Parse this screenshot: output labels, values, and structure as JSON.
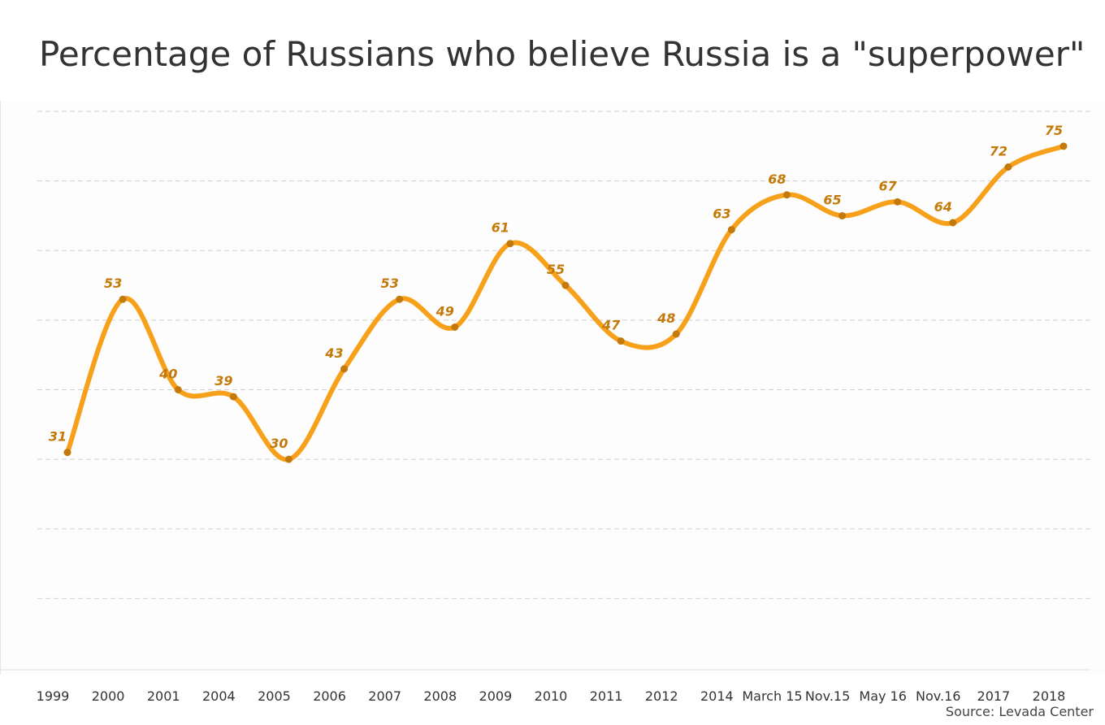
{
  "title": "Percentage of Russians who believe Russia is a \"superpower\"",
  "source": "Source: Levada Center",
  "colors": {
    "line": "#f7a11a",
    "point": "#c47a0a",
    "label": "#c47a0a",
    "grid": "#d0d0d0",
    "axis_text": "#333333"
  },
  "chart_data": {
    "type": "line",
    "categories": [
      "1999",
      "2000",
      "2001",
      "2004",
      "2005",
      "2006",
      "2007",
      "2008",
      "2009",
      "2010",
      "2011",
      "2012",
      "2014",
      "March 15",
      "Nov.15",
      "May 16",
      "Nov.16",
      "2017",
      "2018"
    ],
    "series": [
      {
        "values": [
          31,
          53,
          40,
          39,
          30,
          43,
          53,
          49,
          61,
          55,
          47,
          48,
          63,
          68,
          65,
          67,
          64,
          72,
          75
        ]
      }
    ],
    "data_labels": true,
    "ylim": [
      0,
      80
    ],
    "grid": true,
    "title": "Percentage of Russians who believe Russia is a \"superpower\"",
    "xlabel": "",
    "ylabel": ""
  }
}
